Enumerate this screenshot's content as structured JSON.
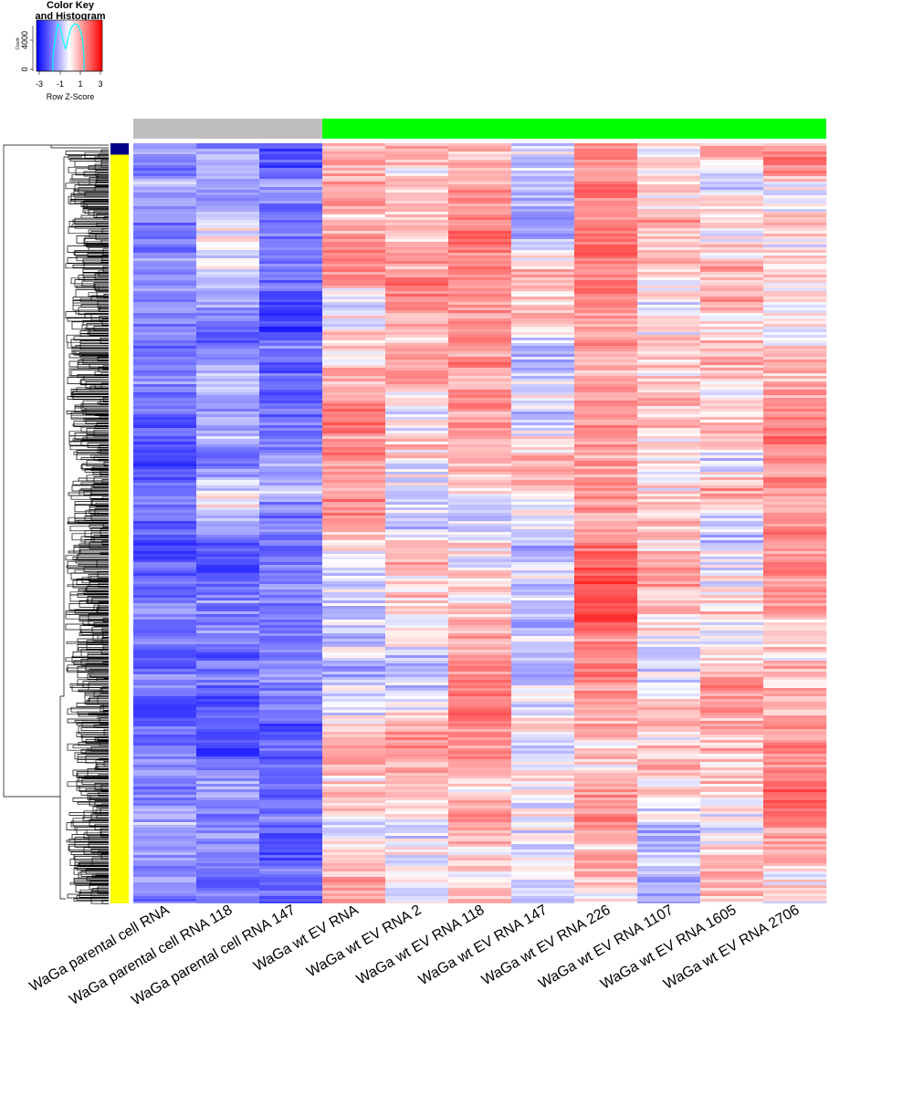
{
  "chart_data": {
    "type": "heatmap",
    "color_key": {
      "title_lines": [
        "Color Key",
        "and Histogram"
      ],
      "xlabel": "Row Z-Score",
      "ylabel": "Count",
      "x_ticks": [
        "-3",
        "-1",
        "1",
        "3"
      ],
      "y_ticks": [
        "0",
        "4000"
      ],
      "x_range": [
        -3.3,
        3.3
      ],
      "histogram_color": "#00ffff",
      "colors": {
        "low": "#0000ff",
        "mid": "#ffffff",
        "high": "#ff0000"
      }
    },
    "column_groups": [
      {
        "color": "#bebebe",
        "columns": 3
      },
      {
        "color": "#00ff00",
        "columns": 8
      }
    ],
    "row_groups": [
      {
        "color": "#00008b",
        "fraction": 0.015
      },
      {
        "color": "#ffff00",
        "fraction": 0.985
      }
    ],
    "columns": [
      "WaGa parental cell RNA",
      "WaGa parental cell RNA 118",
      "WaGa parental cell RNA 147",
      "WaGa wt EV RNA",
      "WaGa wt EV RNA 2",
      "WaGa wt EV RNA 118",
      "WaGa wt EV RNA 147",
      "WaGa wt EV RNA 226",
      "WaGa wt EV RNA 1107",
      "WaGa wt EV RNA 1605",
      "WaGa wt EV RNA 2706"
    ],
    "column_mean_z": [
      -1.1,
      -1.2,
      -1.3,
      0.5,
      0.3,
      0.9,
      -0.3,
      0.9,
      0.3,
      0.3,
      0.7
    ]
  }
}
